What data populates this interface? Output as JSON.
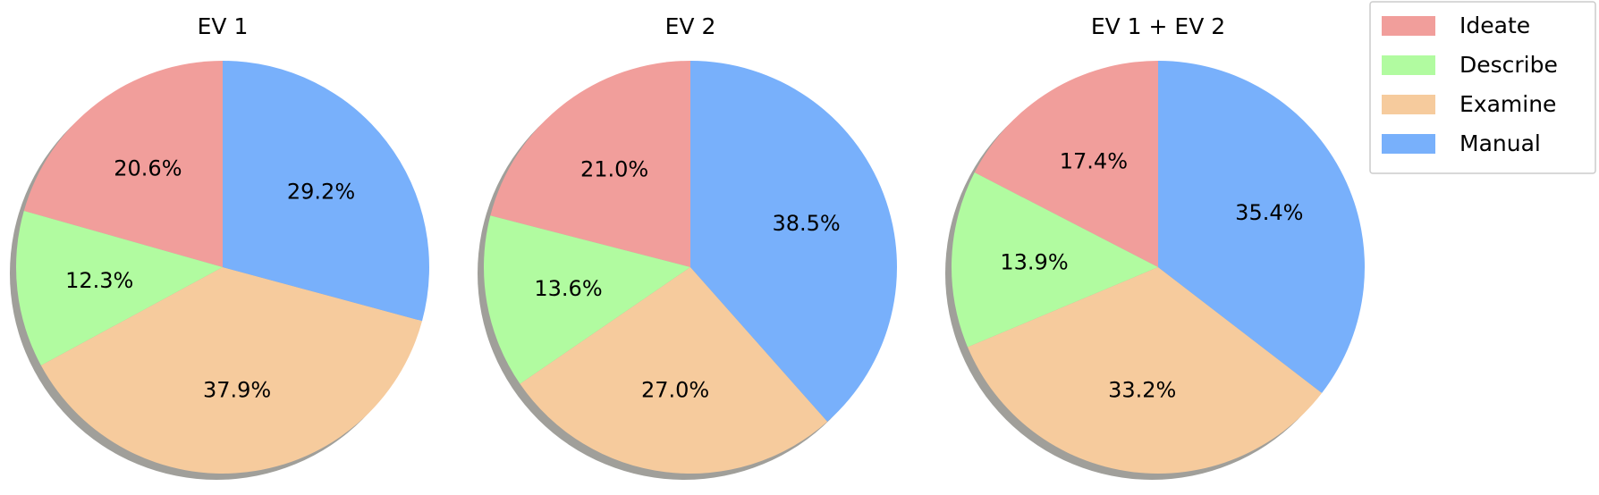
{
  "chart_data": [
    {
      "type": "pie",
      "title": "EV 1",
      "categories": [
        "Ideate",
        "Describe",
        "Examine",
        "Manual"
      ],
      "values": [
        20.6,
        12.3,
        37.9,
        29.2
      ],
      "labels": [
        "20.6%",
        "12.3%",
        "37.9%",
        "29.2%"
      ]
    },
    {
      "type": "pie",
      "title": "EV 2",
      "categories": [
        "Ideate",
        "Describe",
        "Examine",
        "Manual"
      ],
      "values": [
        21.0,
        13.6,
        27.0,
        38.5
      ],
      "labels": [
        "21.0%",
        "13.6%",
        "27.0%",
        "38.5%"
      ]
    },
    {
      "type": "pie",
      "title": "EV 1 + EV 2",
      "categories": [
        "Ideate",
        "Describe",
        "Examine",
        "Manual"
      ],
      "values": [
        17.4,
        13.9,
        33.2,
        35.4
      ],
      "labels": [
        "17.4%",
        "13.9%",
        "33.2%",
        "35.4%"
      ]
    }
  ],
  "legend": {
    "placement": "top-right",
    "items": [
      {
        "label": "Ideate",
        "color": "#f19e9b"
      },
      {
        "label": "Describe",
        "color": "#b1fba0"
      },
      {
        "label": "Examine",
        "color": "#f6cb9d"
      },
      {
        "label": "Manual",
        "color": "#78b0fb"
      }
    ]
  },
  "shadow_color": "#a09f9a",
  "start_angle": "top, counter-clockwise"
}
